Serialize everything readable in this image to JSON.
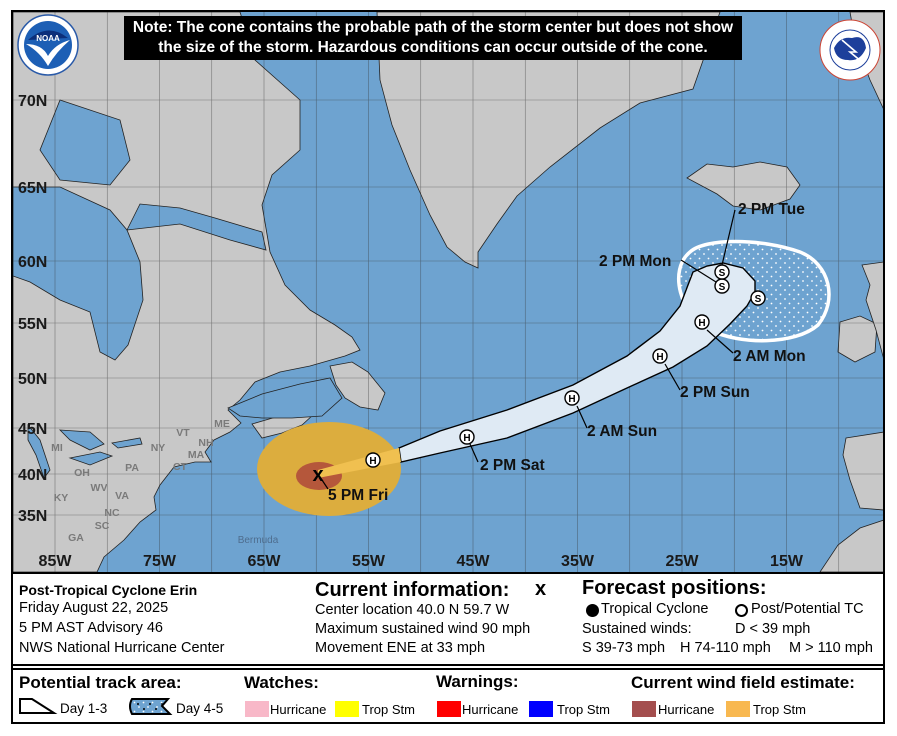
{
  "note": {
    "line1": "Note: The cone contains the probable path of the storm center but does not show",
    "line2": "the size of the storm. Hazardous conditions can occur outside of the cone."
  },
  "logos": {
    "noaa": "NOAA",
    "nws": "NATIONAL WEATHER SERVICE"
  },
  "map": {
    "lat_labels": [
      "70N",
      "65N",
      "60N",
      "55N",
      "50N",
      "45N",
      "40N",
      "35N"
    ],
    "lon_labels": [
      "85W",
      "75W",
      "65W",
      "55W",
      "45W",
      "35W",
      "25W",
      "15W"
    ],
    "state_labels": [
      "ME",
      "MI",
      "NY",
      "VT",
      "NH",
      "MA",
      "CT",
      "OH",
      "PA",
      "WV",
      "VA",
      "KY",
      "NC",
      "SC",
      "GA"
    ],
    "place_labels": {
      "bermuda": "Bermuda"
    },
    "colors": {
      "water": "#6ea3d0",
      "land": "#c8c8c8",
      "cone": "#dfeaf4",
      "ts_wind": "#dcad3e",
      "hu_wind": "#b5573b"
    }
  },
  "forecast": {
    "current_marker": "x",
    "current_label": "5 PM Fri",
    "points": [
      {
        "symbol": "H",
        "label": ""
      },
      {
        "symbol": "H",
        "label": "2 PM Sat"
      },
      {
        "symbol": "H",
        "label": "2 AM Sun"
      },
      {
        "symbol": "H",
        "label": "2 PM Sun"
      },
      {
        "symbol": "H",
        "label": "2 AM Mon"
      },
      {
        "symbol": "S",
        "label": ""
      },
      {
        "symbol": "S",
        "label": "2 PM Mon"
      },
      {
        "symbol": "S",
        "label": "2 PM Tue"
      }
    ]
  },
  "info": {
    "storm_name": "Post-Tropical Cyclone Erin",
    "date": "Friday August 22, 2025",
    "advisory": "5 PM AST Advisory 46",
    "center": "NWS National Hurricane Center",
    "current_title": "Current information:",
    "current_symbol": "x",
    "location": "Center location 40.0 N 59.7 W",
    "max_wind": "Maximum sustained wind 90 mph",
    "movement": "Movement ENE at 33 mph",
    "forecast_title": "Forecast positions:",
    "tc_label": "Tropical Cyclone",
    "ptc_label": "Post/Potential TC",
    "sustained": "Sustained winds:",
    "d_range": "D < 39 mph",
    "s_range": "S 39-73 mph",
    "h_range": "H 74-110 mph",
    "m_range": "M > 110 mph"
  },
  "legend": {
    "track_title": "Potential track area:",
    "day13": "Day 1-3",
    "day45": "Day 4-5",
    "watches_title": "Watches:",
    "warnings_title": "Warnings:",
    "wind_title": "Current wind field estimate:",
    "hurricane": "Hurricane",
    "trop_stm": "Trop Stm",
    "colors": {
      "watch_hu": "#f8b8c8",
      "watch_ts": "#ffff00",
      "warn_hu": "#ff0000",
      "warn_ts": "#0000ff",
      "wind_hu": "#a44e4e",
      "wind_ts": "#f8b850"
    }
  }
}
